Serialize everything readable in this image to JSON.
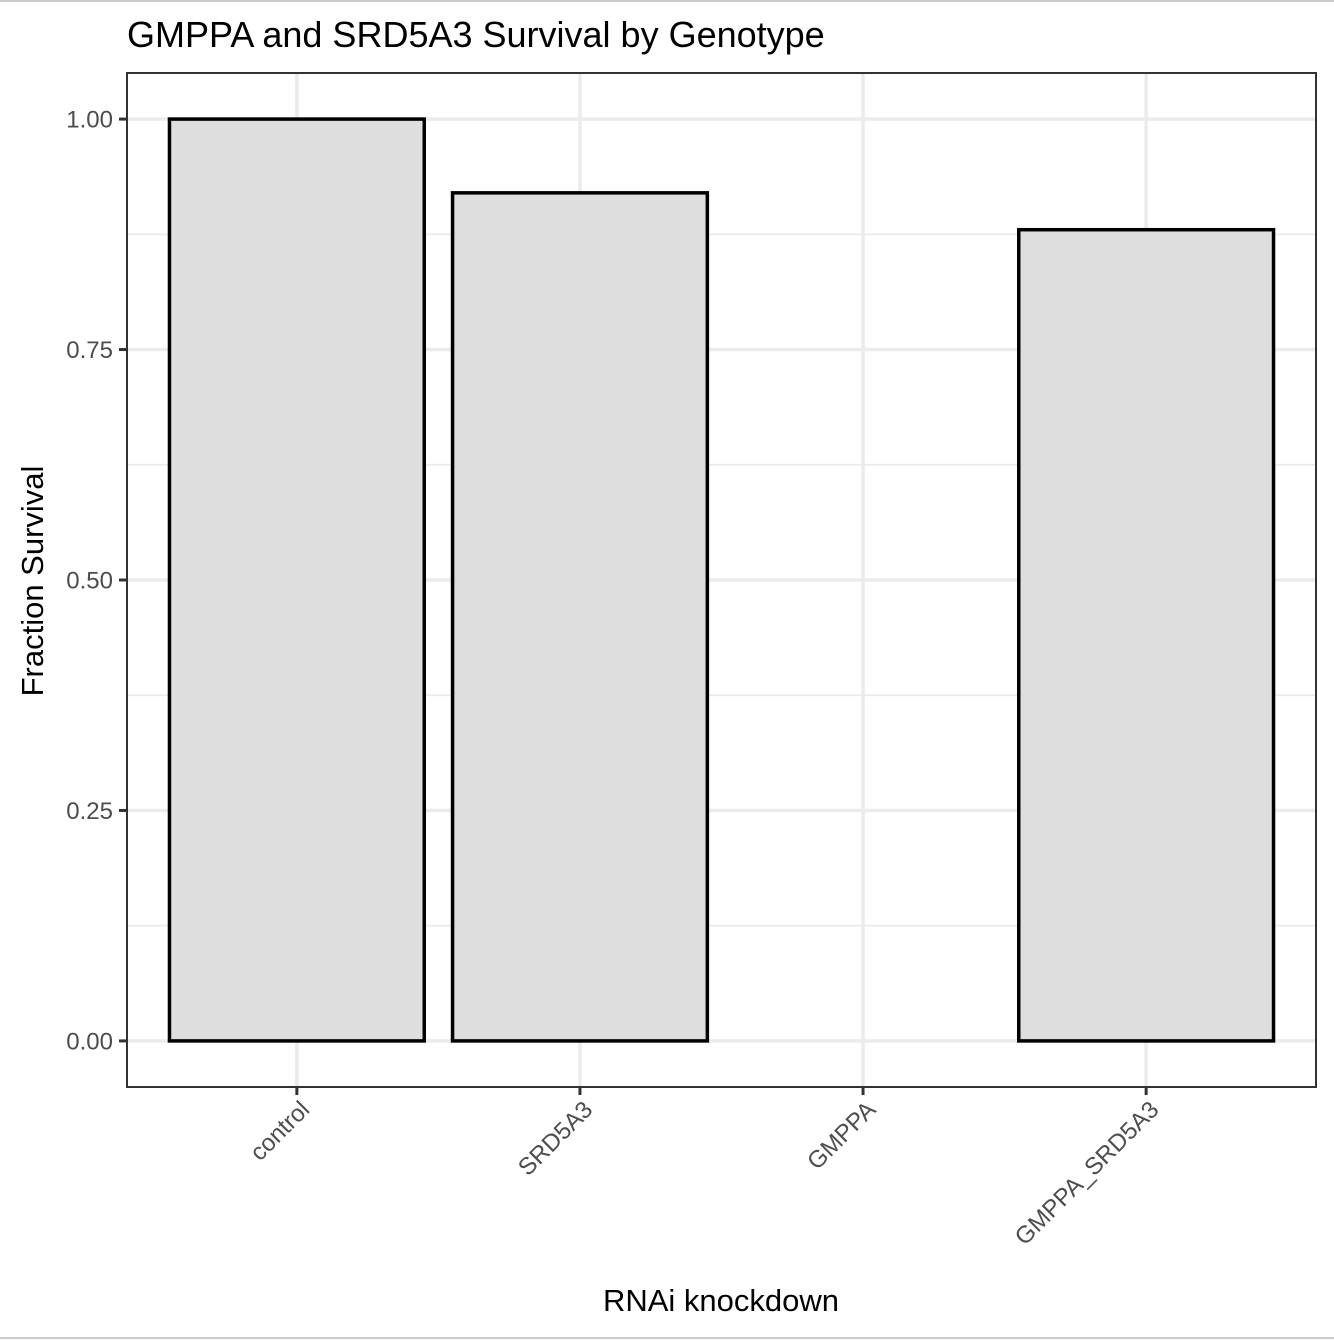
{
  "chart_data": {
    "type": "bar",
    "title": "GMPPA and SRD5A3 Survival by Genotype",
    "xlabel": "RNAi knockdown",
    "ylabel": "Fraction Survival",
    "categories": [
      "control",
      "SRD5A3",
      "GMPPA",
      "GMPPA_SRD5A3"
    ],
    "values": [
      1.0,
      0.92,
      0.0,
      0.88
    ],
    "ylim": [
      -0.05,
      1.05
    ],
    "yticks": [
      0.0,
      0.25,
      0.5,
      0.75,
      1.0
    ],
    "ytick_labels": [
      "0.00",
      "0.25",
      "0.50",
      "0.75",
      "1.00"
    ],
    "grid": true,
    "legend": "none",
    "colors": {
      "bar_fill": "#dedede",
      "bar_outline": "#000000",
      "grid": "#ebebeb",
      "panel_border": "#333333",
      "tick_text": "#4d4d4d"
    }
  }
}
